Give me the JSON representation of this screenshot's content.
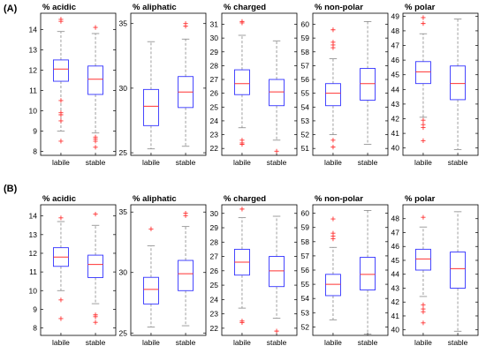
{
  "panels": [
    {
      "label": "(A)",
      "chart_data": [
        {
          "type": "box",
          "title": "% acidic",
          "categories": [
            "labile",
            "stable"
          ],
          "ylim": [
            7.8,
            14.8
          ],
          "yticks": [
            8,
            9,
            10,
            11,
            12,
            13,
            14
          ],
          "boxes": [
            {
              "whislo": 9.0,
              "q1": 11.45,
              "med": 12.05,
              "q3": 12.5,
              "whishi": 13.9,
              "fliers": [
                14.5,
                14.4,
                10.5,
                9.9,
                9.8,
                9.5,
                8.5
              ]
            },
            {
              "whislo": 8.9,
              "q1": 10.8,
              "med": 11.55,
              "q3": 12.2,
              "whishi": 13.8,
              "fliers": [
                14.1,
                8.7,
                8.6,
                8.5,
                8.2
              ]
            }
          ]
        },
        {
          "type": "box",
          "title": "% aliphatic",
          "categories": [
            "labile",
            "stable"
          ],
          "ylim": [
            24.8,
            35.8
          ],
          "yticks": [
            25,
            30,
            35
          ],
          "boxes": [
            {
              "whislo": 25.3,
              "q1": 27.1,
              "med": 28.6,
              "q3": 29.9,
              "whishi": 33.6,
              "fliers": []
            },
            {
              "whislo": 25.5,
              "q1": 28.5,
              "med": 29.7,
              "q3": 30.9,
              "whishi": 33.8,
              "fliers": [
                35.0,
                34.8
              ]
            }
          ]
        },
        {
          "type": "box",
          "title": "% charged",
          "categories": [
            "labile",
            "stable"
          ],
          "ylim": [
            21.5,
            31.8
          ],
          "yticks": [
            22,
            23,
            24,
            25,
            26,
            27,
            28,
            29,
            30,
            31
          ],
          "boxes": [
            {
              "whislo": 23.5,
              "q1": 25.9,
              "med": 26.7,
              "q3": 27.7,
              "whishi": 30.2,
              "fliers": [
                31.2,
                31.1,
                22.6,
                22.4,
                22.3
              ]
            },
            {
              "whislo": 22.6,
              "q1": 25.1,
              "med": 26.1,
              "q3": 27.0,
              "whishi": 29.8,
              "fliers": [
                21.8
              ]
            }
          ]
        },
        {
          "type": "box",
          "title": "% non-polar",
          "categories": [
            "labile",
            "stable"
          ],
          "ylim": [
            50.5,
            60.8
          ],
          "yticks": [
            51,
            52,
            53,
            54,
            55,
            56,
            57,
            58,
            59,
            60
          ],
          "boxes": [
            {
              "whislo": 52.0,
              "q1": 54.1,
              "med": 55.0,
              "q3": 55.7,
              "whishi": 57.5,
              "fliers": [
                59.6,
                58.7,
                58.5,
                58.3,
                51.6,
                51.1
              ]
            },
            {
              "whislo": 51.3,
              "q1": 54.5,
              "med": 55.7,
              "q3": 56.8,
              "whishi": 60.2,
              "fliers": []
            }
          ]
        },
        {
          "type": "box",
          "title": "% polar",
          "categories": [
            "labile",
            "stable"
          ],
          "ylim": [
            39.5,
            49.2
          ],
          "yticks": [
            40,
            41,
            42,
            43,
            44,
            45,
            46,
            47,
            48,
            49
          ],
          "boxes": [
            {
              "whislo": 42.1,
              "q1": 44.4,
              "med": 45.2,
              "q3": 45.9,
              "whishi": 47.8,
              "fliers": [
                48.9,
                48.5,
                41.9,
                41.6,
                41.4,
                40.5
              ]
            },
            {
              "whislo": 39.9,
              "q1": 43.3,
              "med": 44.4,
              "q3": 45.6,
              "whishi": 48.8,
              "fliers": []
            }
          ]
        }
      ]
    },
    {
      "label": "(B)",
      "chart_data": [
        {
          "type": "box",
          "title": "% acidic",
          "categories": [
            "labile",
            "stable"
          ],
          "ylim": [
            7.6,
            14.6
          ],
          "yticks": [
            8,
            9,
            10,
            11,
            12,
            13,
            14
          ],
          "boxes": [
            {
              "whislo": 10.0,
              "q1": 11.3,
              "med": 11.8,
              "q3": 12.3,
              "whishi": 13.7,
              "fliers": [
                13.9,
                9.5,
                8.5
              ]
            },
            {
              "whislo": 9.3,
              "q1": 10.7,
              "med": 11.4,
              "q3": 11.9,
              "whishi": 13.5,
              "fliers": [
                14.1,
                8.7,
                8.6,
                8.3
              ]
            }
          ]
        },
        {
          "type": "box",
          "title": "% aliphatic",
          "categories": [
            "labile",
            "stable"
          ],
          "ylim": [
            24.8,
            35.6
          ],
          "yticks": [
            25,
            30,
            35
          ],
          "boxes": [
            {
              "whislo": 25.5,
              "q1": 27.4,
              "med": 28.6,
              "q3": 29.6,
              "whishi": 32.2,
              "fliers": [
                33.6
              ]
            },
            {
              "whislo": 25.6,
              "q1": 28.5,
              "med": 29.9,
              "q3": 31.0,
              "whishi": 33.8,
              "fliers": [
                34.9,
                34.7
              ]
            }
          ]
        },
        {
          "type": "box",
          "title": "% charged",
          "categories": [
            "labile",
            "stable"
          ],
          "ylim": [
            21.5,
            30.6
          ],
          "yticks": [
            22,
            23,
            24,
            25,
            26,
            27,
            28,
            29,
            30
          ],
          "boxes": [
            {
              "whislo": 23.4,
              "q1": 25.7,
              "med": 26.6,
              "q3": 27.5,
              "whishi": 29.7,
              "fliers": [
                30.3,
                22.5,
                22.4
              ]
            },
            {
              "whislo": 22.7,
              "q1": 24.9,
              "med": 26.0,
              "q3": 27.0,
              "whishi": 29.8,
              "fliers": [
                21.8
              ]
            }
          ]
        },
        {
          "type": "box",
          "title": "% non-polar",
          "categories": [
            "labile",
            "stable"
          ],
          "ylim": [
            51.4,
            60.6
          ],
          "yticks": [
            52,
            53,
            54,
            55,
            56,
            57,
            58,
            59,
            60
          ],
          "boxes": [
            {
              "whislo": 52.5,
              "q1": 54.2,
              "med": 55.0,
              "q3": 55.7,
              "whishi": 57.6,
              "fliers": [
                59.6,
                58.6,
                58.4,
                58.2
              ]
            },
            {
              "whislo": 51.5,
              "q1": 54.6,
              "med": 55.7,
              "q3": 56.9,
              "whishi": 60.2,
              "fliers": []
            }
          ]
        },
        {
          "type": "box",
          "title": "% polar",
          "categories": [
            "labile",
            "stable"
          ],
          "ylim": [
            39.6,
            49.0
          ],
          "yticks": [
            40,
            41,
            42,
            43,
            44,
            45,
            46,
            47,
            48
          ],
          "boxes": [
            {
              "whislo": 42.4,
              "q1": 44.3,
              "med": 45.1,
              "q3": 45.8,
              "whishi": 47.4,
              "fliers": [
                48.1,
                41.8,
                41.5,
                41.3,
                40.5
              ]
            },
            {
              "whislo": 39.9,
              "q1": 43.0,
              "med": 44.4,
              "q3": 45.6,
              "whishi": 48.5,
              "fliers": []
            }
          ]
        }
      ]
    }
  ],
  "colors": {
    "box": "#3333ff",
    "median": "#ff3333",
    "whisker": "#888888",
    "flier": "#ff3333",
    "axis": "#000000"
  }
}
